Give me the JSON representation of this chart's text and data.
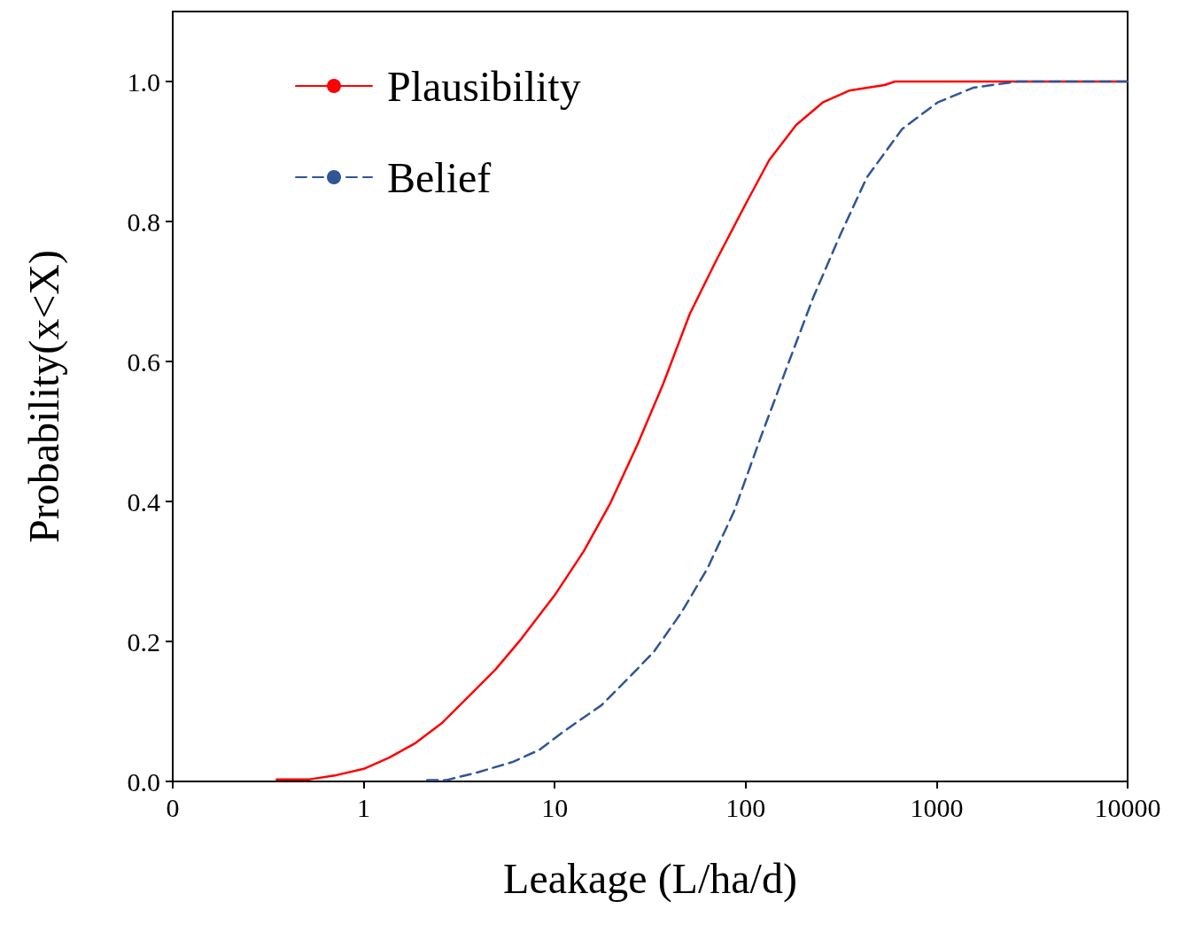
{
  "chart_data": {
    "type": "line",
    "xlabel": "Leakage (L/ha/d)",
    "ylabel": "Probability(x<X)",
    "log": "x",
    "xlim": [
      0.1,
      10000
    ],
    "xticks": [
      {
        "value": 0.1,
        "label": "0"
      },
      1,
      10,
      100,
      1000,
      10000
    ],
    "ylim": [
      0,
      1.1
    ],
    "yticks": [
      {
        "value": 0,
        "label": "0.0"
      },
      {
        "value": 0.2,
        "label": "0.2"
      },
      {
        "value": 0.4,
        "label": "0.4"
      },
      {
        "value": 0.6,
        "label": "0.6"
      },
      {
        "value": 0.8,
        "label": "0.8"
      },
      {
        "value": 1,
        "label": "1.0"
      }
    ],
    "grid": false,
    "legend": "top left",
    "marker": "none",
    "series": [
      {
        "name": "Plausibility",
        "color": "#ff0000",
        "line_style": "solid",
        "x": [
          0.35,
          0.52,
          0.72,
          1,
          1.36,
          1.87,
          2.58,
          3.56,
          4.9,
          6.7,
          10,
          14.2,
          19.6,
          27,
          37,
          51,
          70,
          100,
          133,
          184,
          253,
          348,
          533,
          605,
          10000
        ],
        "values": [
          0.003,
          0.003,
          0.009,
          0.018,
          0.034,
          0.055,
          0.084,
          0.122,
          0.16,
          0.204,
          0.266,
          0.329,
          0.398,
          0.48,
          0.568,
          0.668,
          0.744,
          0.825,
          0.888,
          0.938,
          0.97,
          0.987,
          0.995,
          1,
          1
        ]
      },
      {
        "name": "Belief",
        "color": "#2f5597",
        "line_style": "dashed",
        "x": [
          2.15,
          2.72,
          3.95,
          6.05,
          8.3,
          11.5,
          17.6,
          24.2,
          33,
          46,
          63,
          87,
          120,
          165,
          227,
          313,
          431,
          659,
          1010,
          1550,
          2640,
          10000
        ],
        "values": [
          0.002,
          0.002,
          0.013,
          0.028,
          0.045,
          0.074,
          0.109,
          0.147,
          0.185,
          0.241,
          0.304,
          0.386,
          0.492,
          0.593,
          0.693,
          0.781,
          0.863,
          0.932,
          0.97,
          0.991,
          1,
          1
        ]
      }
    ]
  }
}
